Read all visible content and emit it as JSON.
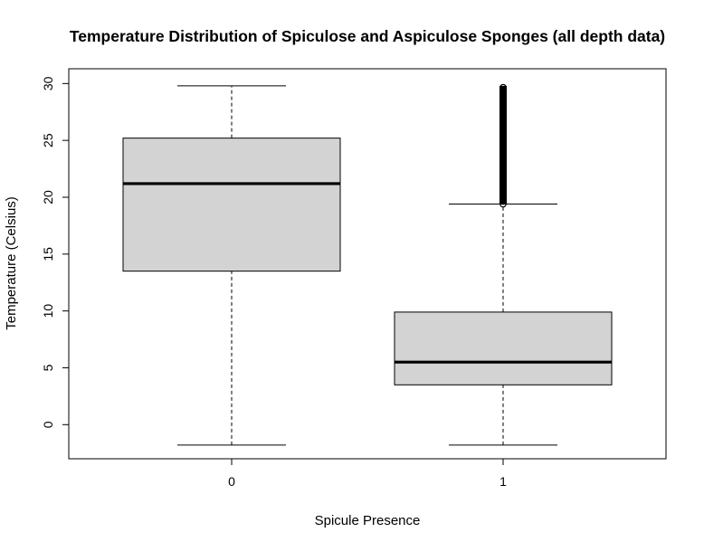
{
  "chart_data": {
    "type": "boxplot",
    "title": "Temperature Distribution of Spiculose and Aspiculose Sponges (all depth data)",
    "xlabel": "Spicule Presence",
    "ylabel": "Temperature (Celsius)",
    "categories": [
      "0",
      "1"
    ],
    "y_ticks": [
      0,
      5,
      10,
      15,
      20,
      25,
      30
    ],
    "ylim": [
      -3,
      31.3
    ],
    "grid": false,
    "legend": "none",
    "colors": {
      "box_fill": "#d3d3d3",
      "stroke": "#000000"
    },
    "boxes": [
      {
        "category": "0",
        "whisker_low": -1.8,
        "q1": 13.5,
        "median": 21.2,
        "q3": 25.2,
        "whisker_high": 29.8,
        "outliers_low": null,
        "outliers_high": null
      },
      {
        "category": "1",
        "whisker_low": -1.8,
        "q1": 3.5,
        "median": 5.5,
        "q3": 9.9,
        "whisker_high": 19.4,
        "outliers_low": 19.4,
        "outliers_high": 29.8
      }
    ]
  }
}
